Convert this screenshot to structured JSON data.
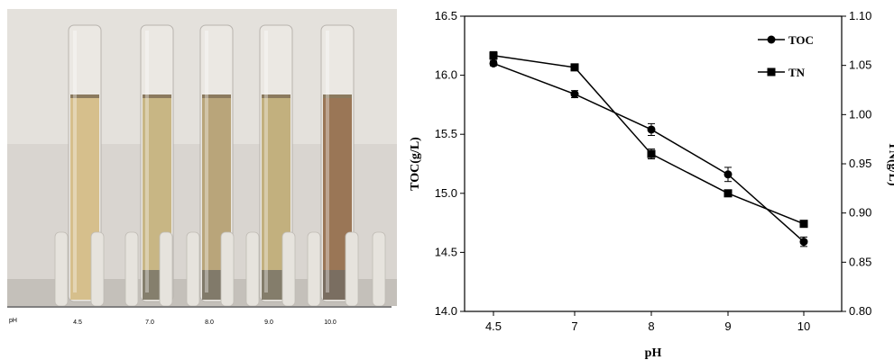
{
  "photo": {
    "axis_label": "pH",
    "samples": [
      "4.5",
      "7.0",
      "8.0",
      "9.0",
      "10.0"
    ],
    "liquid_colors": [
      "#d6bf8c",
      "#c8b684",
      "#b9a57a",
      "#c2b07e",
      "#9a7656"
    ],
    "background_color": "#d9d5d0"
  },
  "chart_data": {
    "type": "line",
    "categories": [
      "4.5",
      "7",
      "8",
      "9",
      "10"
    ],
    "xlabel": "pH",
    "ylabel": "TOC(g/L)",
    "y2label": "TN(g/L)",
    "ylim": [
      14.0,
      16.5
    ],
    "y2lim": [
      0.8,
      1.1
    ],
    "yticks": [
      "14.0",
      "14.5",
      "15.0",
      "15.5",
      "16.0",
      "16.5"
    ],
    "y2ticks": [
      "0.80",
      "0.85",
      "0.90",
      "0.95",
      "1.00",
      "1.05",
      "1.10"
    ],
    "grid": false,
    "legend_position": "top-right",
    "series": [
      {
        "name": "TOC",
        "axis": "left",
        "marker": "circle",
        "values": [
          16.1,
          15.84,
          15.54,
          15.16,
          14.59
        ],
        "errors": [
          0.02,
          0.03,
          0.05,
          0.06,
          0.04
        ]
      },
      {
        "name": "TN",
        "axis": "right",
        "marker": "square",
        "values": [
          1.06,
          1.048,
          0.96,
          0.92,
          0.889
        ],
        "errors": [
          0.004,
          0.003,
          0.005,
          0.003,
          0.003
        ]
      }
    ]
  }
}
